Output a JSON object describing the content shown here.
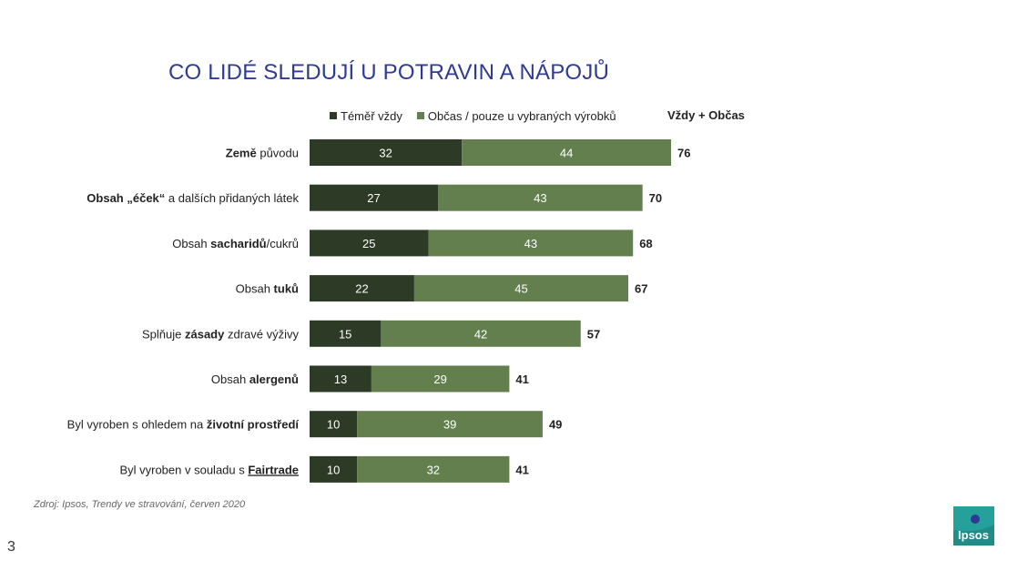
{
  "title": "CO LIDÉ SLEDUJÍ U POTRAVIN A NÁPOJŮ",
  "legend": {
    "items": [
      {
        "label": "Téměř vždy",
        "color": "#2d3b26"
      },
      {
        "label": "Občas / pouze u vybraných výrobků",
        "color": "#627f4d"
      }
    ],
    "total_label": "Vždy + Občas"
  },
  "colors": {
    "dark": "#2d3b26",
    "light": "#627f4d",
    "title": "#2f3a92"
  },
  "chart_data": {
    "type": "bar",
    "orientation": "horizontal",
    "stacked": true,
    "categories": [
      [
        {
          "t": "Země",
          "b": true
        },
        {
          "t": " původu",
          "b": false
        }
      ],
      [
        {
          "t": "Obsah „éček“",
          "b": true
        },
        {
          "t": " a dalších přidaných látek",
          "b": false
        }
      ],
      [
        {
          "t": "Obsah ",
          "b": false
        },
        {
          "t": "sacharidů",
          "b": true
        },
        {
          "t": "/cukrů",
          "b": false
        }
      ],
      [
        {
          "t": "Obsah ",
          "b": false
        },
        {
          "t": "tuků",
          "b": true
        }
      ],
      [
        {
          "t": "Splňuje ",
          "b": false
        },
        {
          "t": "zásady",
          "b": true
        },
        {
          "t": " zdravé výživy",
          "b": false
        }
      ],
      [
        {
          "t": "Obsah ",
          "b": false
        },
        {
          "t": "alergenů",
          "b": true
        }
      ],
      [
        {
          "t": "Byl vyroben s ohledem na ",
          "b": false
        },
        {
          "t": "životní prostředí",
          "b": true
        }
      ],
      [
        {
          "t": "Byl vyroben v souladu s ",
          "b": false
        },
        {
          "t": "Fairtrade",
          "b": true,
          "wavy": true
        }
      ]
    ],
    "series": [
      {
        "name": "Téměř vždy",
        "values": [
          32,
          27,
          25,
          22,
          15,
          13,
          10,
          10
        ]
      },
      {
        "name": "Občas / pouze u vybraných výrobků",
        "values": [
          44,
          43,
          43,
          45,
          42,
          29,
          39,
          32
        ]
      }
    ],
    "totals": [
      76,
      70,
      68,
      67,
      57,
      41,
      49,
      41
    ],
    "xlim": [
      0,
      76
    ]
  },
  "source": "Zdroj: Ipsos, Trendy ve stravování, červen 2020",
  "page_number": "3",
  "logo_text": "Ipsos"
}
